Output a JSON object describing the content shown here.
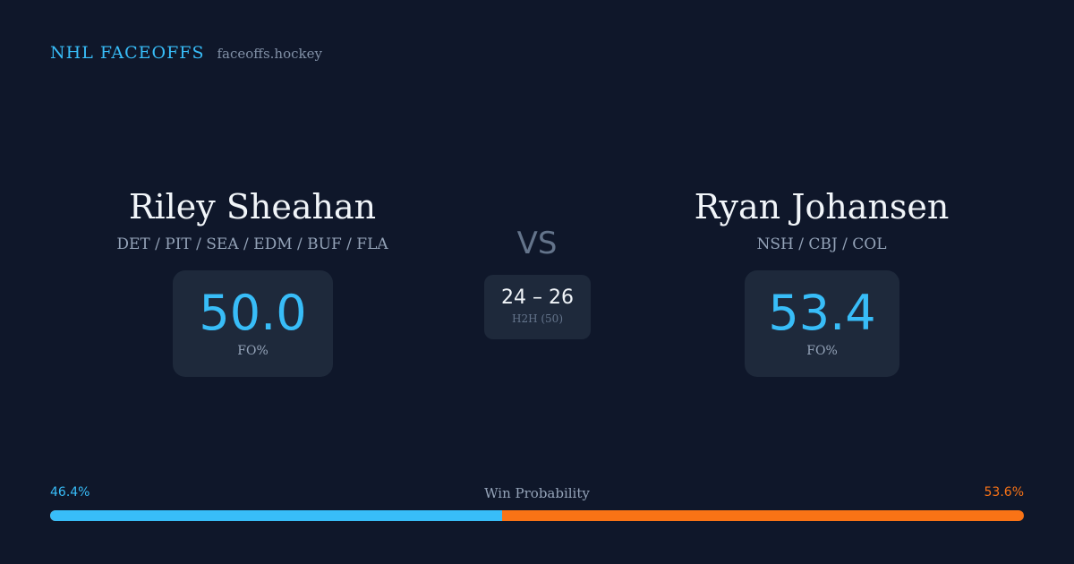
{
  "brand": {
    "title": "NHL FACEOFFS",
    "domain": "faceoffs.hockey"
  },
  "player_left": {
    "name": "Riley Sheahan",
    "teams": "DET / PIT / SEA / EDM / BUF / FLA",
    "stat_value": "50.0",
    "stat_label": "FO%"
  },
  "player_right": {
    "name": "Ryan Johansen",
    "teams": "NSH / CBJ / COL",
    "stat_value": "53.4",
    "stat_label": "FO%"
  },
  "versus": "VS",
  "head_to_head": {
    "score": "24 – 26",
    "label": "H2H (50)"
  },
  "win_probability": {
    "label": "Win Probability",
    "left": "46.4%",
    "right": "53.6%",
    "left_fraction": 0.464
  },
  "colors": {
    "left_accent": "#38bdf8",
    "right_accent": "#f97316",
    "background": "#0f172a",
    "card": "#1e293b"
  }
}
